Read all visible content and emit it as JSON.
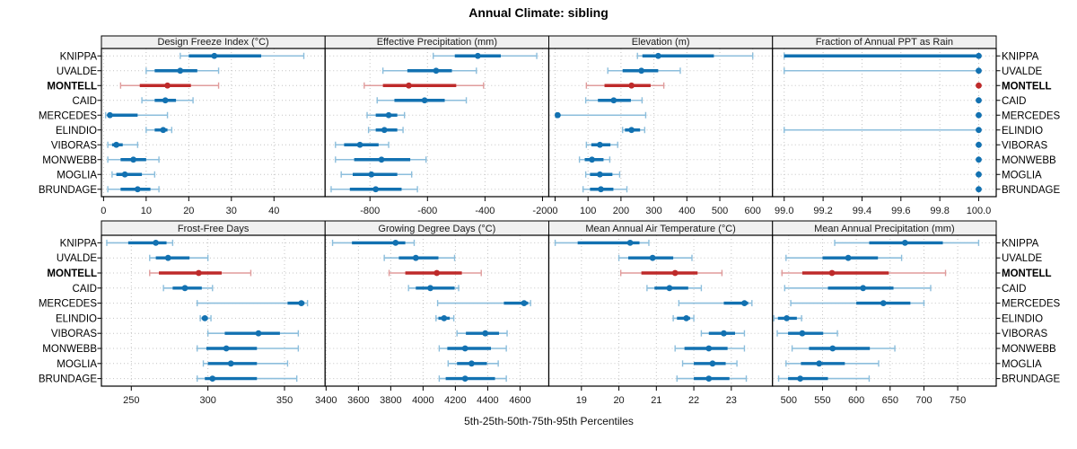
{
  "title": "Annual Climate: sibling",
  "caption": "5th-25th-50th-75th-95th Percentiles",
  "stations": [
    "KNIPPA",
    "UVALDE",
    "MONTELL",
    "CAID",
    "MERCEDES",
    "ELINDIO",
    "VIBORAS",
    "MONWEBB",
    "MOGLIA",
    "BRUNDAGE"
  ],
  "highlighted_station": "MONTELL",
  "colors": {
    "series": "#1271B1",
    "series_light": "#8CBEDC",
    "highlight": "#BE2A2A",
    "highlight_light": "#E09C9C",
    "strip_bg": "#F0F0F0",
    "grid": "#C4C4C4",
    "border": "#000000"
  },
  "chart_data": {
    "type": "dotplot-percentiles",
    "percentile_levels": [
      5,
      25,
      50,
      75,
      95
    ],
    "legend_note": "thin line = 5th-95th, thick line = 25th-75th, dot = 50th percentile",
    "panels": [
      {
        "row": 0,
        "col": 0,
        "title": "Design Freeze Index (°C)",
        "axis": {
          "min": -0.5,
          "max": 52,
          "ticks": [
            0,
            10,
            20,
            30,
            40
          ],
          "tick_labels": [
            "0",
            "10",
            "20",
            "30",
            "40"
          ]
        },
        "values": [
          [
            18,
            20,
            26,
            37,
            47
          ],
          [
            10,
            12,
            18,
            22,
            27
          ],
          [
            4,
            8.5,
            15,
            20.5,
            27
          ],
          [
            9,
            12,
            14.5,
            17,
            21
          ],
          [
            0.5,
            1,
            1.5,
            8,
            15
          ],
          [
            10,
            12,
            14,
            15,
            16
          ],
          [
            1,
            2,
            3,
            4.5,
            8
          ],
          [
            1,
            4,
            7,
            10,
            13
          ],
          [
            2,
            3,
            5,
            9,
            12
          ],
          [
            1,
            4,
            8,
            11,
            13
          ]
        ]
      },
      {
        "row": 0,
        "col": 1,
        "title": "Effective Precipitation (mm)",
        "axis": {
          "min": -956,
          "max": -178,
          "ticks": [
            -800,
            -600,
            -400,
            -200
          ],
          "tick_labels": [
            "-800",
            "-600",
            "-400",
            "-200"
          ]
        },
        "values": [
          [
            -580,
            -505,
            -425,
            -345,
            -220
          ],
          [
            -755,
            -670,
            -570,
            -515,
            -430
          ],
          [
            -820,
            -755,
            -665,
            -500,
            -405
          ],
          [
            -775,
            -715,
            -610,
            -540,
            -465
          ],
          [
            -810,
            -780,
            -735,
            -705,
            -680
          ],
          [
            -805,
            -780,
            -750,
            -705,
            -685
          ],
          [
            -920,
            -890,
            -835,
            -770,
            -735
          ],
          [
            -920,
            -855,
            -760,
            -660,
            -605
          ],
          [
            -900,
            -860,
            -795,
            -705,
            -655
          ],
          [
            -935,
            -870,
            -780,
            -690,
            -635
          ]
        ]
      },
      {
        "row": 0,
        "col": 2,
        "title": "Elevation (m)",
        "axis": {
          "min": -19,
          "max": 660,
          "ticks": [
            0,
            100,
            200,
            300,
            400,
            500,
            600
          ],
          "tick_labels": [
            "0",
            "100",
            "200",
            "300",
            "400",
            "500",
            "600"
          ]
        },
        "values": [
          [
            250,
            265,
            313,
            482,
            600
          ],
          [
            160,
            205,
            262,
            313,
            380
          ],
          [
            95,
            150,
            232,
            290,
            330
          ],
          [
            93,
            130,
            178,
            230,
            264
          ],
          [
            3,
            5,
            8,
            15,
            275
          ],
          [
            205,
            212,
            232,
            258,
            272
          ],
          [
            95,
            110,
            136,
            168,
            190
          ],
          [
            74,
            90,
            112,
            147,
            166
          ],
          [
            93,
            106,
            136,
            174,
            196
          ],
          [
            85,
            106,
            139,
            177,
            218
          ]
        ]
      },
      {
        "row": 0,
        "col": 3,
        "title": "Fraction of Annual PPT as Rain",
        "axis": {
          "min": 98.94,
          "max": 100.09,
          "ticks": [
            99.0,
            99.2,
            99.4,
            99.6,
            99.8,
            100.0
          ],
          "tick_labels": [
            "99.0",
            "99.2",
            "99.4",
            "99.6",
            "99.8",
            "100.0"
          ]
        },
        "values": [
          [
            99.0,
            99.0,
            100,
            100,
            100
          ],
          [
            99.0,
            100,
            100,
            100,
            100
          ],
          [
            100,
            100,
            100,
            100,
            100
          ],
          [
            100,
            100,
            100,
            100,
            100
          ],
          [
            100,
            100,
            100,
            100,
            100
          ],
          [
            99.0,
            100,
            100,
            100,
            100
          ],
          [
            100,
            100,
            100,
            100,
            100
          ],
          [
            100,
            100,
            100,
            100,
            100
          ],
          [
            100,
            100,
            100,
            100,
            100
          ],
          [
            100,
            100,
            100,
            100,
            100
          ]
        ]
      },
      {
        "row": 1,
        "col": 0,
        "title": "Frost-Free Days",
        "axis": {
          "min": 230.5,
          "max": 376.5,
          "ticks": [
            250,
            300,
            350
          ],
          "tick_labels": [
            "250",
            "300",
            "350"
          ]
        },
        "values": [
          [
            234,
            248,
            266,
            273,
            277
          ],
          [
            262,
            266,
            274,
            288,
            300
          ],
          [
            262,
            268,
            294,
            309,
            328
          ],
          [
            271,
            277,
            285,
            296,
            303
          ],
          [
            293,
            352,
            361,
            363,
            365
          ],
          [
            295,
            296,
            298,
            300,
            302
          ],
          [
            300,
            311,
            333,
            347,
            359
          ],
          [
            293,
            299,
            312,
            332,
            359
          ],
          [
            297,
            300,
            315,
            332,
            352
          ],
          [
            293,
            298,
            303,
            332,
            358
          ]
        ]
      },
      {
        "row": 1,
        "col": 1,
        "title": "Growing Degree Days (°C)",
        "axis": {
          "min": 3394,
          "max": 4778,
          "ticks": [
            3400,
            3600,
            3800,
            4000,
            4200,
            4400,
            4600
          ],
          "tick_labels": [
            "3400",
            "3600",
            "3800",
            "4000",
            "4200",
            "4400",
            "4600"
          ]
        },
        "values": [
          [
            3440,
            3560,
            3830,
            3890,
            3945
          ],
          [
            3760,
            3850,
            3955,
            4095,
            4195
          ],
          [
            3790,
            3890,
            4085,
            4240,
            4360
          ],
          [
            3910,
            3955,
            4045,
            4195,
            4220
          ],
          [
            4090,
            4500,
            4625,
            4650,
            4665
          ],
          [
            4080,
            4095,
            4130,
            4165,
            4190
          ],
          [
            4210,
            4265,
            4385,
            4470,
            4520
          ],
          [
            4100,
            4150,
            4260,
            4420,
            4515
          ],
          [
            4155,
            4210,
            4300,
            4395,
            4465
          ],
          [
            4100,
            4140,
            4260,
            4445,
            4515
          ]
        ]
      },
      {
        "row": 1,
        "col": 2,
        "title": "Mean Annual Air Temperature (°C)",
        "axis": {
          "min": 18.13,
          "max": 24.1,
          "ticks": [
            19,
            20,
            21,
            22,
            23
          ],
          "tick_labels": [
            "19",
            "20",
            "21",
            "22",
            "23"
          ]
        },
        "values": [
          [
            18.3,
            18.9,
            20.3,
            20.55,
            20.8
          ],
          [
            20.0,
            20.25,
            20.9,
            21.45,
            21.95
          ],
          [
            20.05,
            20.6,
            21.5,
            22.1,
            22.75
          ],
          [
            20.75,
            20.95,
            21.35,
            21.85,
            22.2
          ],
          [
            21.6,
            22.8,
            23.35,
            23.45,
            23.55
          ],
          [
            21.45,
            21.55,
            21.8,
            21.9,
            22.0
          ],
          [
            22.2,
            22.4,
            22.8,
            23.1,
            23.35
          ],
          [
            21.5,
            21.75,
            22.4,
            22.9,
            23.35
          ],
          [
            21.7,
            22.0,
            22.5,
            22.85,
            23.15
          ],
          [
            21.55,
            22.0,
            22.4,
            22.95,
            23.4
          ]
        ]
      },
      {
        "row": 1,
        "col": 3,
        "title": "Mean Annual Precipitation (mm)",
        "axis": {
          "min": 476,
          "max": 807,
          "ticks": [
            500,
            550,
            600,
            650,
            700,
            750
          ],
          "tick_labels": [
            "500",
            "550",
            "600",
            "650",
            "700",
            "750"
          ]
        },
        "values": [
          [
            568,
            619,
            672,
            728,
            781
          ],
          [
            496,
            550,
            588,
            632,
            667
          ],
          [
            490,
            520,
            564,
            648,
            732
          ],
          [
            494,
            558,
            610,
            655,
            710
          ],
          [
            503,
            600,
            640,
            680,
            700
          ],
          [
            478,
            484,
            497,
            512,
            519
          ],
          [
            483,
            499,
            520,
            551,
            572
          ],
          [
            505,
            530,
            565,
            620,
            657
          ],
          [
            496,
            518,
            545,
            583,
            633
          ],
          [
            485,
            499,
            517,
            558,
            619
          ]
        ]
      }
    ]
  }
}
